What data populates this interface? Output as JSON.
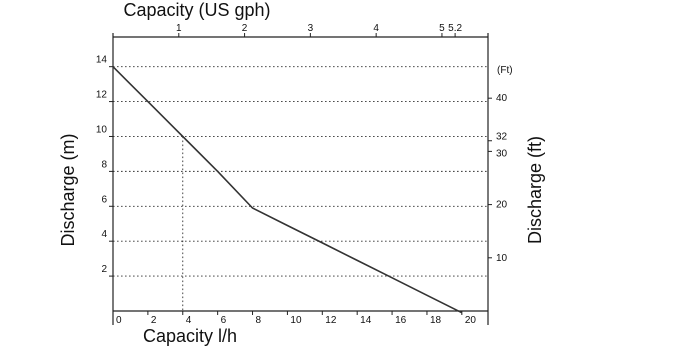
{
  "chart_data": {
    "type": "line",
    "title": "",
    "xlabel": "Capacity l/h",
    "ylabel": "Discharge (m)",
    "x2label": "Capacity (US gph)",
    "y2label": "Discharge (ft)",
    "xlim": [
      0,
      21.5
    ],
    "ylim": [
      0,
      15.7
    ],
    "x2lim": [
      0,
      5.7
    ],
    "y2lim": [
      0,
      51.5
    ],
    "grid": true,
    "legend": "none",
    "x_ticks": [
      "0",
      "2",
      "4",
      "6",
      "8",
      "10",
      "12",
      "14",
      "16",
      "18",
      "20"
    ],
    "y_ticks": [
      "2",
      "4",
      "6",
      "8",
      "10",
      "12",
      "14"
    ],
    "x2_ticks": [
      "1",
      "2",
      "3",
      "4",
      "5",
      "5.2"
    ],
    "y2_ticks": [
      "10",
      "20",
      "30",
      "32",
      "40"
    ],
    "y2_unit_label": "(Ft)",
    "series": [
      {
        "x": [
          0,
          2,
          4,
          6,
          8,
          10,
          12,
          14,
          16,
          18,
          20
        ],
        "y": [
          14,
          12,
          10,
          8,
          5.9,
          4.9,
          3.9,
          2.9,
          1.9,
          0.9,
          -0.1
        ]
      }
    ],
    "reference_x": 4,
    "reference_y": 10,
    "line_color": "#333333"
  }
}
